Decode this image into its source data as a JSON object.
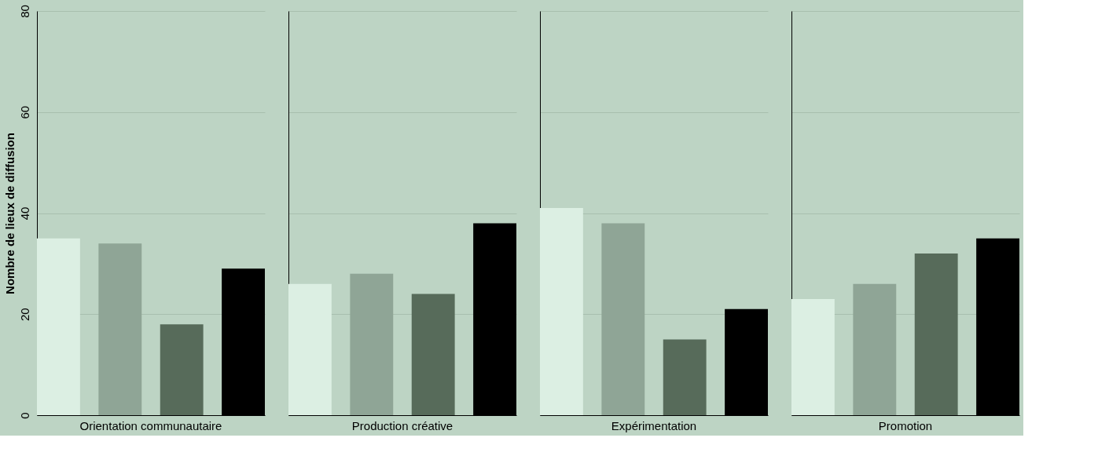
{
  "chart_data": {
    "type": "bar",
    "ylabel": "Nombre de lieux de diffusion",
    "categories": [
      "Orientation communautaire",
      "Production créative",
      "Expérimentation",
      "Promotion"
    ],
    "series": [
      {
        "color": "#dcefe3",
        "values": [
          35,
          26,
          41,
          23
        ]
      },
      {
        "color": "#8fa596",
        "values": [
          34,
          28,
          38,
          26
        ]
      },
      {
        "color": "#576b5a",
        "values": [
          18,
          24,
          15,
          32
        ]
      },
      {
        "color": "#000000",
        "values": [
          29,
          38,
          21,
          35
        ]
      }
    ],
    "ylim": [
      0,
      80
    ],
    "yticks": [
      0,
      20,
      40,
      60,
      80
    ],
    "grid": "y"
  }
}
